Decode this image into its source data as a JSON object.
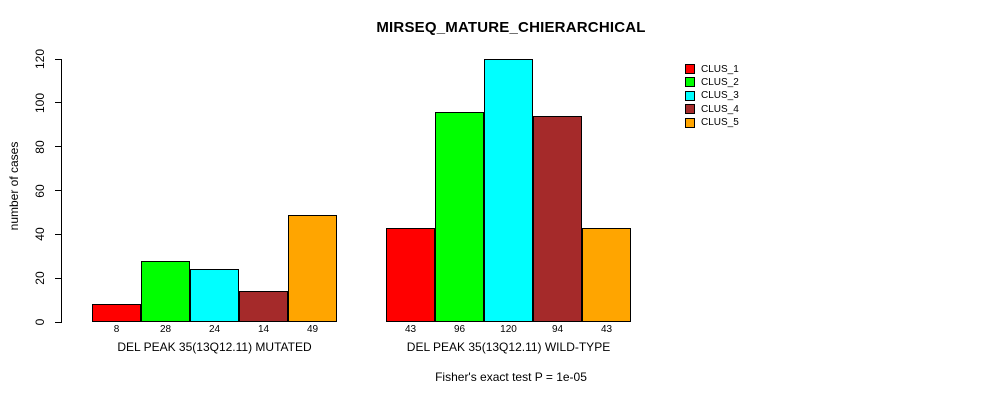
{
  "chart_data": {
    "type": "bar",
    "title": "MIRSEQ_MATURE_CHIERARCHICAL",
    "ylabel": "number of cases",
    "xlabel": "",
    "footnote": "Fisher's exact test P = 1e-05",
    "ylim": [
      0,
      120
    ],
    "yticks": [
      0,
      20,
      40,
      60,
      80,
      100,
      120
    ],
    "grid": false,
    "legend_position": "right",
    "bar_values_labeled": true,
    "categories": [
      "DEL PEAK 35(13Q12.11) MUTATED",
      "DEL PEAK 35(13Q12.11) WILD-TYPE"
    ],
    "series": [
      {
        "name": "CLUS_1",
        "color": "#FF0000",
        "values": [
          8,
          43
        ]
      },
      {
        "name": "CLUS_2",
        "color": "#00FF00",
        "values": [
          28,
          96
        ]
      },
      {
        "name": "CLUS_3",
        "color": "#00FFFF",
        "values": [
          24,
          120
        ]
      },
      {
        "name": "CLUS_4",
        "color": "#A52A2A",
        "values": [
          14,
          94
        ]
      },
      {
        "name": "CLUS_5",
        "color": "#FFA500",
        "values": [
          49,
          43
        ]
      }
    ]
  }
}
